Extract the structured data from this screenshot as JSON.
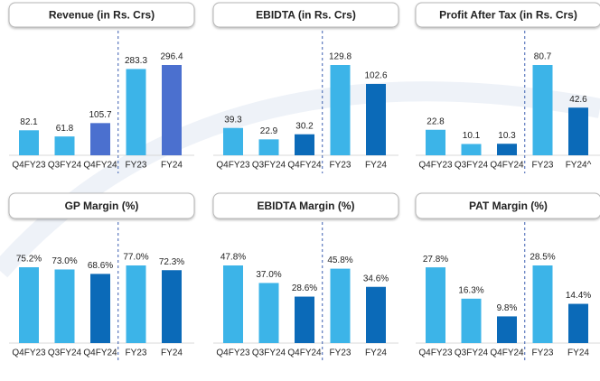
{
  "chart_data": [
    {
      "type": "bar",
      "title": "Revenue (in Rs. Crs)",
      "categories": [
        "Q4FY23",
        "Q3FY24",
        "Q4FY24",
        "FY23",
        "FY24"
      ],
      "values": [
        82.1,
        61.8,
        105.7,
        283.3,
        296.4
      ],
      "colors": [
        "#3cb4e8",
        "#3cb4e8",
        "#4b70cf",
        "#3cb4e8",
        "#4b70cf"
      ]
    },
    {
      "type": "bar",
      "title": "EBIDTA (in Rs. Crs)",
      "categories": [
        "Q4FY23",
        "Q3FY24",
        "Q4FY24",
        "FY23",
        "FY24"
      ],
      "values": [
        39.3,
        22.9,
        30.2,
        129.8,
        102.6
      ],
      "colors": [
        "#3cb4e8",
        "#3cb4e8",
        "#0b6ab8",
        "#3cb4e8",
        "#0b6ab8"
      ]
    },
    {
      "type": "bar",
      "title": "Profit After Tax (in Rs. Crs)",
      "categories": [
        "Q4FY23",
        "Q3FY24",
        "Q4FY24",
        "FY23",
        "FY24^"
      ],
      "values": [
        22.8,
        10.1,
        10.3,
        80.7,
        42.6
      ],
      "colors": [
        "#3cb4e8",
        "#3cb4e8",
        "#0b6ab8",
        "#3cb4e8",
        "#0b6ab8"
      ]
    },
    {
      "type": "bar",
      "title": "GP Margin (%)",
      "categories": [
        "Q4FY23",
        "Q3FY24",
        "Q4FY24",
        "FY23",
        "FY24"
      ],
      "values": [
        75.2,
        73.0,
        68.6,
        77.0,
        72.3
      ],
      "value_labels": [
        "75.2%",
        "73.0%",
        "68.6%",
        "77.0%",
        "72.3%"
      ],
      "colors": [
        "#3cb4e8",
        "#3cb4e8",
        "#0b6ab8",
        "#3cb4e8",
        "#0b6ab8"
      ]
    },
    {
      "type": "bar",
      "title": "EBIDTA Margin (%)",
      "categories": [
        "Q4FY23",
        "Q3FY24",
        "Q4FY24",
        "FY23",
        "FY24"
      ],
      "values": [
        47.8,
        37.0,
        28.6,
        45.8,
        34.6
      ],
      "value_labels": [
        "47.8%",
        "37.0%",
        "28.6%",
        "45.8%",
        "34.6%"
      ],
      "colors": [
        "#3cb4e8",
        "#3cb4e8",
        "#0b6ab8",
        "#3cb4e8",
        "#0b6ab8"
      ]
    },
    {
      "type": "bar",
      "title": "PAT Margin (%)",
      "categories": [
        "Q4FY23",
        "Q3FY24",
        "Q4FY24",
        "FY23",
        "FY24"
      ],
      "values": [
        27.8,
        16.3,
        9.8,
        28.5,
        14.4
      ],
      "value_labels": [
        "27.8%",
        "16.3%",
        "9.8%",
        "28.5%",
        "14.4%"
      ],
      "colors": [
        "#3cb4e8",
        "#3cb4e8",
        "#0b6ab8",
        "#3cb4e8",
        "#0b6ab8"
      ]
    }
  ]
}
